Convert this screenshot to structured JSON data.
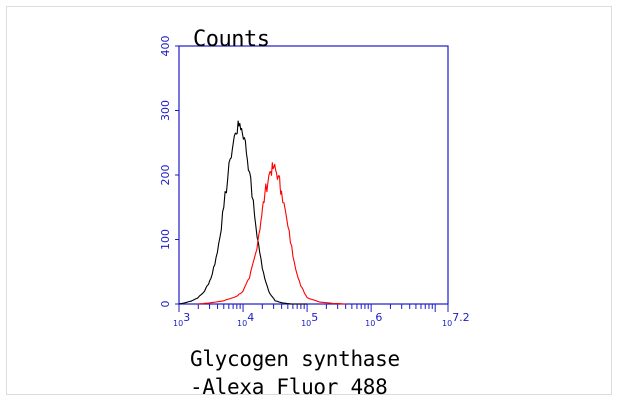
{
  "chart_data": {
    "type": "line",
    "ylabel": "Counts",
    "xlabel_lines": [
      "Glycogen synthase",
      "-Alexa Fluor 488"
    ],
    "xscale": "log",
    "xlim_exp": [
      3,
      7.2
    ],
    "ylim": [
      0,
      400
    ],
    "yticks": [
      0,
      100,
      200,
      300,
      400
    ],
    "xtick_labels": [
      {
        "exp": 3,
        "label": "10^3"
      },
      {
        "exp": 4,
        "label": "10^4"
      },
      {
        "exp": 5,
        "label": "10^5"
      },
      {
        "exp": 6,
        "label": "10^6"
      },
      {
        "exp": 7.2,
        "label": "10^7.2"
      }
    ],
    "grid": false,
    "colors": {
      "axes": "#1c1cc8",
      "tick_labels": "#1c1cc8"
    },
    "series": [
      {
        "color": "#000000",
        "points": [
          [
            3.0,
            0
          ],
          [
            3.1,
            2
          ],
          [
            3.2,
            5
          ],
          [
            3.3,
            10
          ],
          [
            3.4,
            20
          ],
          [
            3.5,
            40
          ],
          [
            3.6,
            80
          ],
          [
            3.7,
            150
          ],
          [
            3.8,
            225
          ],
          [
            3.88,
            265
          ],
          [
            3.95,
            280
          ],
          [
            4.02,
            258
          ],
          [
            4.1,
            205
          ],
          [
            4.2,
            120
          ],
          [
            4.3,
            55
          ],
          [
            4.4,
            20
          ],
          [
            4.5,
            5
          ],
          [
            4.6,
            2
          ],
          [
            4.75,
            0
          ],
          [
            5.0,
            0
          ]
        ]
      },
      {
        "color": "#ff0000",
        "points": [
          [
            3.3,
            0
          ],
          [
            3.5,
            2
          ],
          [
            3.7,
            5
          ],
          [
            3.9,
            12
          ],
          [
            4.0,
            20
          ],
          [
            4.1,
            40
          ],
          [
            4.2,
            80
          ],
          [
            4.28,
            130
          ],
          [
            4.34,
            170
          ],
          [
            4.42,
            205
          ],
          [
            4.48,
            212
          ],
          [
            4.55,
            198
          ],
          [
            4.6,
            175
          ],
          [
            4.7,
            120
          ],
          [
            4.8,
            65
          ],
          [
            4.9,
            28
          ],
          [
            5.0,
            10
          ],
          [
            5.2,
            3
          ],
          [
            5.4,
            1
          ],
          [
            5.6,
            0
          ]
        ]
      }
    ]
  }
}
